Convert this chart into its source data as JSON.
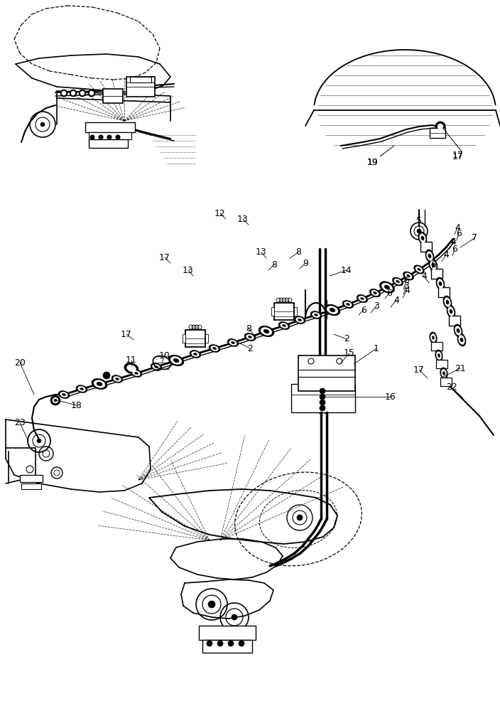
{
  "bg_color": "#ffffff",
  "fig_width": 7.04,
  "fig_height": 10.0,
  "dpi": 100
}
